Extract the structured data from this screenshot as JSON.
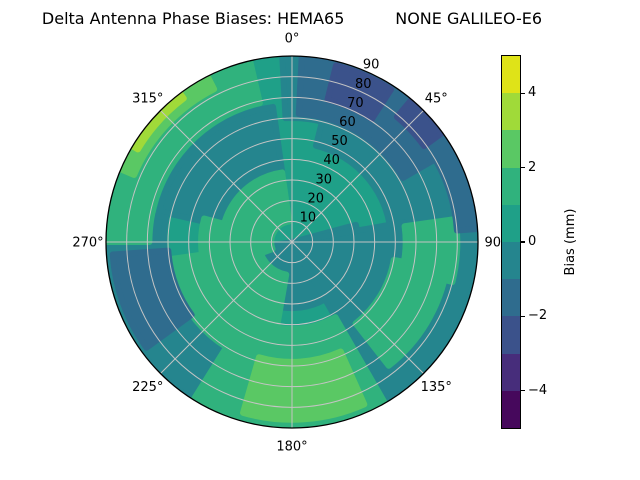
{
  "title": "Delta Antenna Phase Biases: HEMA65          NONE GALILEO-E6",
  "chart_data": {
    "type": "polar_contour_filled",
    "title": "Delta Antenna Phase Biases: HEMA65          NONE GALILEO-E6",
    "colormap": "viridis",
    "angle_direction": "clockwise_from_north",
    "angle_ticks": [
      {
        "deg": 0,
        "label": "0°"
      },
      {
        "deg": 45,
        "label": "45°"
      },
      {
        "deg": 90,
        "label": "90°"
      },
      {
        "deg": 135,
        "label": "135°"
      },
      {
        "deg": 180,
        "label": "180°"
      },
      {
        "deg": 225,
        "label": "225°"
      },
      {
        "deg": 270,
        "label": "270°"
      },
      {
        "deg": 315,
        "label": "315°"
      }
    ],
    "radial_ticks": [
      {
        "value": 10,
        "label": "10"
      },
      {
        "value": 20,
        "label": "20"
      },
      {
        "value": 30,
        "label": "30"
      },
      {
        "value": 40,
        "label": "40"
      },
      {
        "value": 50,
        "label": "50"
      },
      {
        "value": 60,
        "label": "60"
      },
      {
        "value": 70,
        "label": "70"
      },
      {
        "value": 80,
        "label": "80"
      },
      {
        "value": 90,
        "label": "90"
      }
    ],
    "radial_range": [
      0,
      90
    ],
    "radial_label_angle_deg": 22.5,
    "grid": true,
    "grid_color": "#c4c4c4",
    "levels": [
      -5,
      -4,
      -3,
      -2,
      -1,
      0,
      1,
      2,
      3,
      4,
      5
    ],
    "band_colors": [
      "#46085c",
      "#472d7b",
      "#3b528b",
      "#2f6c8e",
      "#25858e",
      "#1fa088",
      "#30b27d",
      "#5ac864",
      "#a0da39",
      "#dfe318"
    ],
    "base_band": 5,
    "colorbar": {
      "label": "Bias (mm)",
      "side": "right",
      "vmin": -5,
      "vmax": 5,
      "tick_values": [
        4,
        2,
        0,
        -2,
        -4
      ],
      "tick_labels": [
        "4",
        "2",
        "0",
        "−2",
        "−4"
      ]
    },
    "regions": [
      {
        "name": "upper-left inner dark band",
        "band": 4,
        "az": [
          283,
          352
        ],
        "r": [
          28,
          66
        ]
      },
      {
        "name": "top dark band to edge",
        "band": 4,
        "az": [
          357,
          376
        ],
        "r": [
          60,
          90
        ]
      },
      {
        "name": "upper-right dark band",
        "band": 4,
        "az": [
          14,
          162
        ],
        "r": [
          48,
          90
        ]
      },
      {
        "name": "center dark blob",
        "band": 4,
        "az": [
          75,
          260
        ],
        "r": [
          0,
          32
        ]
      },
      {
        "name": "center-right dark blob",
        "band": 4,
        "az": [
          80,
          150
        ],
        "r": [
          0,
          55
        ]
      },
      {
        "name": "lower-left dark edge band",
        "band": 4,
        "az": [
          207,
          281
        ],
        "r": [
          62,
          90
        ]
      },
      {
        "name": "center-left green",
        "band": 6,
        "az": [
          250,
          352
        ],
        "r": [
          10,
          34
        ]
      },
      {
        "name": "lower-left green",
        "band": 6,
        "az": [
          190,
          262
        ],
        "r": [
          16,
          60
        ]
      },
      {
        "name": "left green bridge",
        "band": 6,
        "az": [
          258,
          285
        ],
        "r": [
          12,
          44
        ]
      },
      {
        "name": "bottom green",
        "band": 6,
        "az": [
          150,
          212
        ],
        "r": [
          42,
          90
        ]
      },
      {
        "name": "left edge green crescent",
        "band": 6,
        "az": [
          270,
          347
        ],
        "r": [
          69,
          90
        ]
      },
      {
        "name": "right edge green patch",
        "band": 6,
        "az": [
          82,
          104
        ],
        "r": [
          55,
          80
        ]
      },
      {
        "name": "right mid green diagonal",
        "band": 6,
        "az": [
          100,
          142
        ],
        "r": [
          50,
          76
        ]
      },
      {
        "name": "bottom bright green patch",
        "band": 7,
        "az": [
          156,
          196
        ],
        "r": [
          58,
          86
        ]
      },
      {
        "name": "left edge bright green sliver",
        "band": 7,
        "az": [
          293,
          333
        ],
        "r": [
          83,
          90
        ]
      },
      {
        "name": "left edge yellow-green sliver",
        "band": 8,
        "az": [
          301,
          323
        ],
        "r": [
          87,
          90
        ]
      },
      {
        "name": "top-right blue band",
        "band": 3,
        "az": [
          3,
          60
        ],
        "r": [
          62,
          90
        ]
      },
      {
        "name": "right edge blue sliver",
        "band": 3,
        "az": [
          58,
          86
        ],
        "r": [
          80,
          90
        ]
      },
      {
        "name": "top-right navy patch",
        "band": 2,
        "az": [
          14,
          33
        ],
        "r": [
          71,
          88
        ]
      },
      {
        "name": "navy streak near 45",
        "band": 2,
        "az": [
          40,
          54
        ],
        "r": [
          79,
          90
        ]
      },
      {
        "name": "left blue blob",
        "band": 3,
        "az": [
          234,
          266
        ],
        "r": [
          60,
          87
        ]
      }
    ]
  }
}
